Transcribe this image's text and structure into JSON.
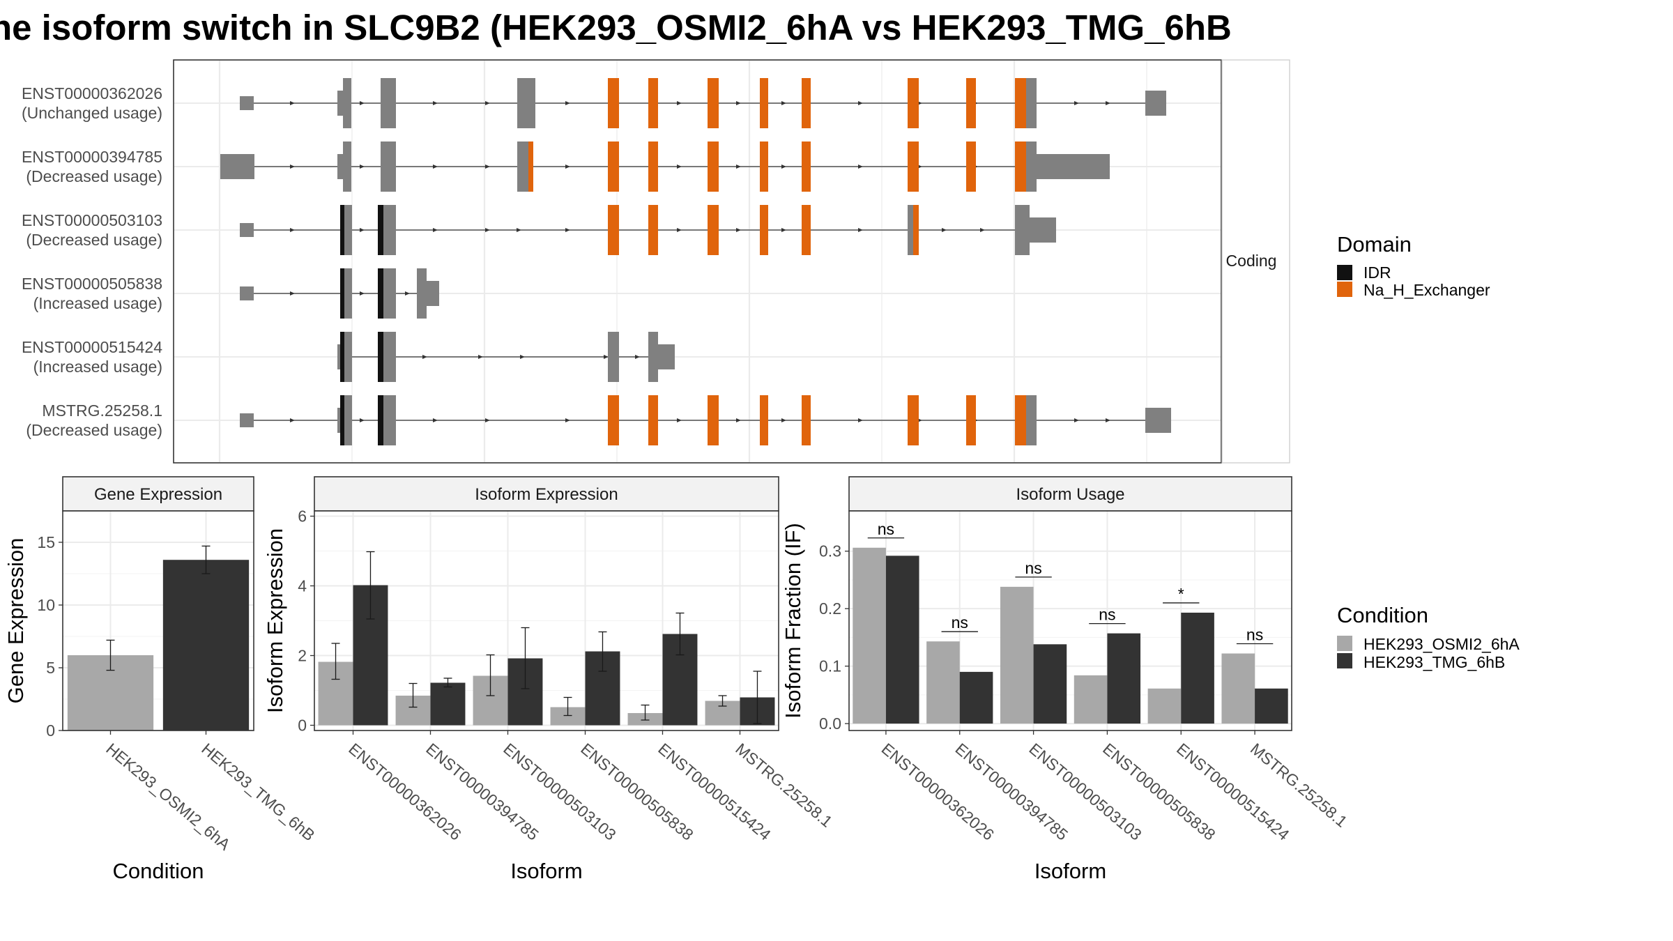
{
  "title": "he isoform switch in SLC9B2 (HEK293_OSMI2_6hA vs HEK293_TMG_6hB",
  "colors": {
    "idr": "#111111",
    "na_h": "#e0640c",
    "utr_gray": "#808080",
    "cond_a": "#a8a8a8",
    "cond_b": "#333333"
  },
  "structure": {
    "strip_label": "Coding",
    "transcripts": [
      {
        "id": "ENST00000362026",
        "usage": "(Unchanged usage)"
      },
      {
        "id": "ENST00000394785",
        "usage": "(Decreased usage)"
      },
      {
        "id": "ENST00000503103",
        "usage": "(Decreased usage)"
      },
      {
        "id": "ENST00000505838",
        "usage": "(Increased usage)"
      },
      {
        "id": "ENST00000515424",
        "usage": "(Increased usage)"
      },
      {
        "id": "MSTRG.25258.1",
        "usage": "(Decreased usage)"
      }
    ]
  },
  "legend_domain": {
    "title": "Domain",
    "items": [
      "IDR",
      "Na_H_Exchanger"
    ]
  },
  "legend_condition": {
    "title": "Condition",
    "items": [
      "HEK293_OSMI2_6hA",
      "HEK293_TMG_6hB"
    ]
  },
  "chart_data": [
    {
      "type": "bar",
      "title": "Gene Expression",
      "xlabel": "Condition",
      "ylabel": "Gene Expression",
      "categories": [
        "HEK293_OSMI2_6hA",
        "HEK293_TMG_6hB"
      ],
      "values": [
        6.0,
        13.6
      ],
      "error_low": [
        4.8,
        12.5
      ],
      "error_high": [
        7.2,
        14.7
      ],
      "ylim": [
        0,
        17.5
      ],
      "yticks": [
        0,
        5,
        10,
        15
      ]
    },
    {
      "type": "bar",
      "title": "Isoform Expression",
      "xlabel": "Isoform",
      "ylabel": "Isoform Expression",
      "categories": [
        "ENST00000362026",
        "ENST00000394785",
        "ENST00000503103",
        "ENST00000505838",
        "ENST00000515424",
        "MSTRG.25258.1"
      ],
      "series": [
        {
          "name": "HEK293_OSMI2_6hA",
          "values": [
            1.82,
            0.85,
            1.42,
            0.52,
            0.35,
            0.7
          ],
          "error_low": [
            1.32,
            0.52,
            0.85,
            0.28,
            0.15,
            0.55
          ],
          "error_high": [
            2.35,
            1.2,
            2.02,
            0.8,
            0.58,
            0.85
          ]
        },
        {
          "name": "HEK293_TMG_6hB",
          "values": [
            4.02,
            1.22,
            1.92,
            2.12,
            2.62,
            0.8
          ],
          "error_low": [
            3.05,
            1.1,
            1.05,
            1.55,
            2.02,
            0.05
          ],
          "error_high": [
            4.98,
            1.35,
            2.8,
            2.68,
            3.22,
            1.55
          ]
        }
      ],
      "ylim": [
        -0.15,
        6.15
      ],
      "yticks": [
        0,
        2,
        4,
        6
      ]
    },
    {
      "type": "bar",
      "title": "Isoform Usage",
      "xlabel": "Isoform",
      "ylabel": "Isoform Fraction (IF)",
      "categories": [
        "ENST00000362026",
        "ENST00000394785",
        "ENST00000503103",
        "ENST00000505838",
        "ENST00000515424",
        "MSTRG.25258.1"
      ],
      "series": [
        {
          "name": "HEK293_OSMI2_6hA",
          "values": [
            0.306,
            0.143,
            0.238,
            0.084,
            0.061,
            0.122
          ]
        },
        {
          "name": "HEK293_TMG_6hB",
          "values": [
            0.292,
            0.09,
            0.138,
            0.157,
            0.193,
            0.061
          ]
        }
      ],
      "significance": [
        "ns",
        "ns",
        "ns",
        "ns",
        "*",
        "ns"
      ],
      "ylim": [
        -0.012,
        0.37
      ],
      "yticks": [
        0.0,
        0.1,
        0.2,
        0.3
      ],
      "ytick_labels": [
        "0.0",
        "0.1",
        "0.2",
        "0.3"
      ]
    }
  ]
}
